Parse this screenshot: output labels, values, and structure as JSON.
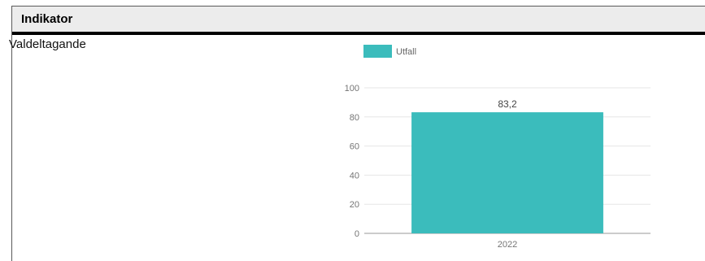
{
  "table": {
    "header": "Indikator",
    "row_label": "Valdeltagande"
  },
  "chart_data": {
    "type": "bar",
    "categories": [
      "2022"
    ],
    "series": [
      {
        "name": "Utfall",
        "values": [
          83.2
        ],
        "value_labels": [
          "83,2"
        ],
        "color": "#3bbcbc"
      }
    ],
    "ylim": [
      0,
      100
    ],
    "yticks": [
      0,
      20,
      40,
      60,
      80,
      100
    ],
    "grid": true,
    "legend": "top-left"
  }
}
